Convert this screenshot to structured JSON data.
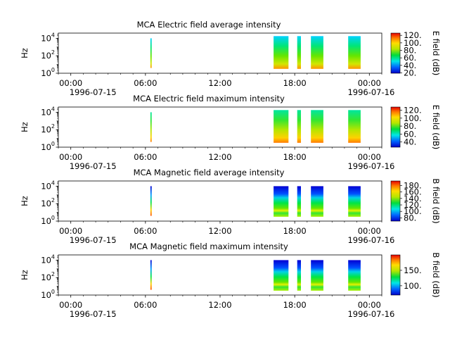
{
  "figure": {
    "panels": [
      {
        "title": "MCA  Electric field average intensity",
        "ylabel": "Hz",
        "colorbar_label": "E field (dB)",
        "colorbar_range": [
          19,
          126
        ],
        "colorbar_ticks": [
          "20.",
          "40.",
          "60.",
          "80.",
          "100.",
          "120."
        ],
        "colorbar_tick_values": [
          20,
          40,
          60,
          80,
          100,
          120
        ]
      },
      {
        "title": "MCA  Electric field maximum intensity",
        "ylabel": "Hz",
        "colorbar_label": "E field (dB)",
        "colorbar_range": [
          27,
          128
        ],
        "colorbar_ticks": [
          "40.",
          "60.",
          "80.",
          "100.",
          "120."
        ],
        "colorbar_tick_values": [
          40,
          60,
          80,
          100,
          120
        ]
      },
      {
        "title": "MCA  Magnetic field average intensity",
        "ylabel": "Hz",
        "colorbar_label": "B field (dB)",
        "colorbar_range": [
          70,
          194
        ],
        "colorbar_ticks": [
          "80.",
          "100.",
          "120.",
          "140.",
          "160.",
          "180."
        ],
        "colorbar_tick_values": [
          80,
          100,
          120,
          140,
          160,
          180
        ]
      },
      {
        "title": "MCA  Magnetic field maximum intensity",
        "ylabel": "Hz",
        "colorbar_label": "B field (dB)",
        "colorbar_range": [
          70,
          200
        ],
        "colorbar_ticks": [
          "100.",
          "150."
        ],
        "colorbar_tick_values": [
          100,
          150
        ]
      }
    ],
    "x_ticks": [
      "00:00",
      "06:00",
      "12:00",
      "18:00",
      "00:00"
    ],
    "x_tick_hours": [
      0,
      6,
      12,
      18,
      24
    ],
    "x_dates": [
      "1996-07-15",
      "1996-07-16"
    ],
    "y_ticks": [
      {
        "base": "10",
        "exp": "0"
      },
      {
        "base": "10",
        "exp": "2"
      },
      {
        "base": "10",
        "exp": "4"
      }
    ]
  },
  "chart_data": [
    {
      "type": "heatmap",
      "title": "MCA  Electric field average intensity",
      "ylabel": "Hz",
      "x_range_hours": [
        -1,
        25
      ],
      "y_range_log10_hz": [
        0,
        4.6
      ],
      "colorscale": "rainbow",
      "colorbar_label": "E field (dB)",
      "colorbar_range": [
        19,
        126
      ],
      "data_intervals_hours": [
        [
          6.4,
          6.5
        ],
        [
          16.3,
          17.5
        ],
        [
          18.2,
          18.5
        ],
        [
          19.3,
          20.3
        ],
        [
          22.3,
          23.3
        ]
      ]
    },
    {
      "type": "heatmap",
      "title": "MCA  Electric field maximum intensity",
      "ylabel": "Hz",
      "x_range_hours": [
        -1,
        25
      ],
      "y_range_log10_hz": [
        0,
        4.6
      ],
      "colorscale": "rainbow",
      "colorbar_label": "E field (dB)",
      "colorbar_range": [
        27,
        128
      ],
      "data_intervals_hours": [
        [
          6.4,
          6.5
        ],
        [
          16.3,
          17.5
        ],
        [
          18.2,
          18.5
        ],
        [
          19.3,
          20.3
        ],
        [
          22.3,
          23.3
        ]
      ]
    },
    {
      "type": "heatmap",
      "title": "MCA  Magnetic field average intensity",
      "ylabel": "Hz",
      "x_range_hours": [
        -1,
        25
      ],
      "y_range_log10_hz": [
        0,
        4.6
      ],
      "colorscale": "rainbow",
      "colorbar_label": "B field (dB)",
      "colorbar_range": [
        70,
        194
      ],
      "data_intervals_hours": [
        [
          6.4,
          6.5
        ],
        [
          16.3,
          17.5
        ],
        [
          18.2,
          18.5
        ],
        [
          19.3,
          20.3
        ],
        [
          22.3,
          23.3
        ]
      ]
    },
    {
      "type": "heatmap",
      "title": "MCA  Magnetic field maximum intensity",
      "ylabel": "Hz",
      "x_range_hours": [
        -1,
        25
      ],
      "y_range_log10_hz": [
        0,
        4.6
      ],
      "colorscale": "rainbow",
      "colorbar_label": "B field (dB)",
      "colorbar_range": [
        70,
        200
      ],
      "data_intervals_hours": [
        [
          6.4,
          6.5
        ],
        [
          16.3,
          17.5
        ],
        [
          18.2,
          18.5
        ],
        [
          19.3,
          20.3
        ],
        [
          22.3,
          23.3
        ]
      ]
    }
  ]
}
